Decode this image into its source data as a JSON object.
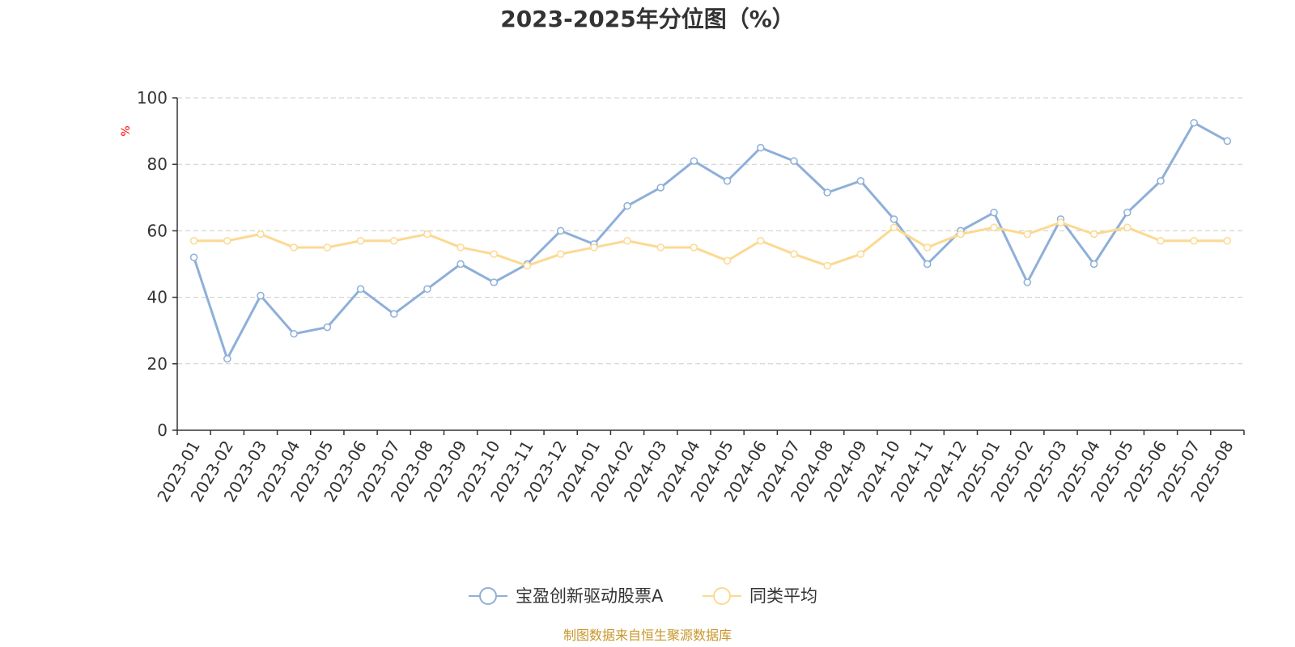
{
  "chart_data": {
    "type": "line",
    "title": "2023-2025年分位图（%）",
    "ylabel": "%",
    "ylim": [
      0,
      100
    ],
    "yticks": [
      0,
      20,
      40,
      60,
      80,
      100
    ],
    "grid": true,
    "legend_position": "bottom",
    "categories": [
      "2023-01",
      "2023-02",
      "2023-03",
      "2023-04",
      "2023-05",
      "2023-06",
      "2023-07",
      "2023-08",
      "2023-09",
      "2023-10",
      "2023-11",
      "2023-12",
      "2024-01",
      "2024-02",
      "2024-03",
      "2024-04",
      "2024-05",
      "2024-06",
      "2024-07",
      "2024-08",
      "2024-09",
      "2024-10",
      "2024-11",
      "2024-12",
      "2025-01",
      "2025-02",
      "2025-03",
      "2025-04",
      "2025-05",
      "2025-06",
      "2025-07",
      "2025-08"
    ],
    "series": [
      {
        "name": "宝盈创新驱动股票A",
        "color": "#8eafd9",
        "values": [
          52,
          21.5,
          40.5,
          29,
          31,
          42.5,
          35,
          42.5,
          50,
          44.5,
          50,
          60,
          56,
          67.5,
          73,
          81,
          75,
          85,
          81,
          71.5,
          75,
          63.5,
          50,
          60,
          65.5,
          44.5,
          63.5,
          50,
          65.5,
          75,
          92.5,
          87
        ]
      },
      {
        "name": "同类平均",
        "color": "#fcd992",
        "values": [
          57,
          57,
          59,
          55,
          55,
          57,
          57,
          59,
          55,
          53,
          49.5,
          53,
          55,
          57,
          55,
          55,
          51,
          57,
          53,
          49.5,
          53,
          61,
          55,
          59,
          61,
          59,
          62.5,
          59,
          61,
          57,
          57,
          57
        ]
      }
    ]
  },
  "footer": {
    "source": "制图数据来自恒生聚源数据库"
  }
}
